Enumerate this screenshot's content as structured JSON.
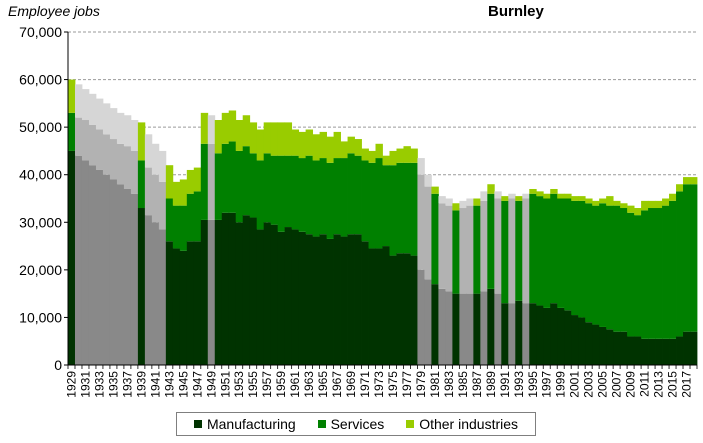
{
  "chart_data": {
    "type": "area",
    "title": "Burnley",
    "ylabel": "Employee jobs",
    "xlabel": "",
    "ylim": [
      0,
      70000
    ],
    "yticks": [
      0,
      10000,
      20000,
      30000,
      40000,
      50000,
      60000,
      70000
    ],
    "ytick_labels": [
      "0",
      "10,000",
      "20,000",
      "30,000",
      "40,000",
      "50,000",
      "60,000",
      "70,000"
    ],
    "grid": "horizontal-dashed",
    "legend_placement": "bottom",
    "colors": {
      "Manufacturing": "#003300",
      "Services": "#008000",
      "Other industries": "#99cc00",
      "estimated_manufacturing": "#898989",
      "estimated_services": "#b2b2b2",
      "estimated_other": "#d6d6d6",
      "gridline": "#9a9a9a"
    },
    "x": [
      1929,
      1930,
      1931,
      1932,
      1933,
      1934,
      1935,
      1936,
      1937,
      1938,
      1939,
      1940,
      1941,
      1942,
      1943,
      1944,
      1945,
      1946,
      1947,
      1948,
      1949,
      1950,
      1951,
      1952,
      1953,
      1954,
      1955,
      1956,
      1957,
      1958,
      1959,
      1960,
      1961,
      1962,
      1963,
      1964,
      1965,
      1966,
      1967,
      1968,
      1969,
      1970,
      1971,
      1972,
      1973,
      1974,
      1975,
      1976,
      1977,
      1978,
      1979,
      1980,
      1981,
      1982,
      1983,
      1984,
      1985,
      1986,
      1987,
      1988,
      1989,
      1990,
      1991,
      1992,
      1993,
      1994,
      1995,
      1996,
      1997,
      1998,
      1999,
      2000,
      2001,
      2002,
      2003,
      2004,
      2005,
      2006,
      2007,
      2008,
      2009,
      2010,
      2011,
      2012,
      2013,
      2014,
      2015,
      2016,
      2017,
      2018
    ],
    "x_tick_labels": [
      "1929",
      "1931",
      "1933",
      "1935",
      "1937",
      "1939",
      "1941",
      "1943",
      "1945",
      "1947",
      "1949",
      "1951",
      "1953",
      "1955",
      "1957",
      "1959",
      "1961",
      "1963",
      "1965",
      "1967",
      "1969",
      "1971",
      "1973",
      "1975",
      "1977",
      "1979",
      "1981",
      "1983",
      "1985",
      "1987",
      "1989",
      "1991",
      "1993",
      "1995",
      "1997",
      "1999",
      "2001",
      "2003",
      "2005",
      "2007",
      "2009",
      "2011",
      "2013",
      "2015",
      "2017"
    ],
    "estimated": [
      0,
      1,
      1,
      1,
      1,
      1,
      1,
      1,
      1,
      1,
      0,
      1,
      1,
      1,
      0,
      0,
      0,
      0,
      0,
      0,
      1,
      0,
      0,
      0,
      0,
      0,
      0,
      0,
      0,
      0,
      0,
      0,
      0,
      0,
      0,
      0,
      0,
      0,
      0,
      0,
      0,
      0,
      0,
      0,
      0,
      0,
      0,
      0,
      0,
      0,
      1,
      1,
      0,
      1,
      1,
      0,
      1,
      1,
      0,
      1,
      0,
      1,
      0,
      1,
      0,
      1,
      0,
      0,
      0,
      0,
      0,
      0,
      0,
      0,
      0,
      0,
      0,
      0,
      0,
      0,
      0,
      0,
      0,
      0,
      0,
      0,
      0,
      0,
      0,
      0
    ],
    "series": [
      {
        "name": "Manufacturing",
        "values": [
          45000,
          44000,
          43000,
          42000,
          41000,
          40000,
          39000,
          38000,
          37000,
          36000,
          33000,
          31500,
          30000,
          28500,
          26000,
          24500,
          24000,
          26000,
          26000,
          30500,
          30500,
          30500,
          32000,
          32000,
          30000,
          31500,
          31000,
          28500,
          30000,
          29500,
          28000,
          29000,
          28500,
          28000,
          27500,
          27000,
          27500,
          26500,
          27500,
          27000,
          27500,
          27500,
          26000,
          24500,
          24500,
          25000,
          23000,
          23500,
          23500,
          23000,
          20000,
          18000,
          17000,
          16000,
          15500,
          15000,
          15000,
          15000,
          15000,
          15500,
          16000,
          15000,
          13000,
          13000,
          13500,
          13000,
          13000,
          12500,
          12000,
          13000,
          12000,
          11500,
          10500,
          10000,
          9000,
          8500,
          8000,
          7500,
          7000,
          7000,
          6000,
          6000,
          5500,
          5500,
          5500,
          5500,
          5500,
          6000,
          7000,
          7000
        ]
      },
      {
        "name": "Services",
        "values": [
          8000,
          8000,
          8500,
          8500,
          8500,
          8500,
          8500,
          8500,
          9000,
          9000,
          10000,
          10000,
          10000,
          10000,
          9000,
          9000,
          9500,
          10000,
          10500,
          16000,
          16000,
          14000,
          14500,
          15000,
          15000,
          14500,
          13500,
          14500,
          14500,
          14500,
          16000,
          15000,
          15500,
          15500,
          16500,
          16000,
          16000,
          16000,
          16000,
          16500,
          17000,
          16500,
          17000,
          18000,
          19000,
          17000,
          19000,
          19000,
          19000,
          19500,
          20000,
          19500,
          19000,
          18000,
          18000,
          17500,
          18000,
          18500,
          18500,
          19000,
          20000,
          20000,
          21500,
          22000,
          21000,
          22000,
          23000,
          23000,
          23000,
          23000,
          23000,
          23500,
          24000,
          24500,
          25000,
          25000,
          26000,
          26000,
          26500,
          26000,
          26000,
          25500,
          27000,
          27500,
          27500,
          28000,
          29000,
          30500,
          31000,
          31000
        ]
      },
      {
        "name": "Other industries",
        "values": [
          7000,
          7000,
          6500,
          6500,
          6500,
          6500,
          6500,
          6500,
          6500,
          6500,
          8000,
          7000,
          6500,
          6500,
          7000,
          5000,
          5500,
          5000,
          5000,
          6500,
          6000,
          7000,
          6500,
          6500,
          6500,
          6500,
          6500,
          6500,
          6500,
          7000,
          7000,
          7000,
          5500,
          5500,
          5500,
          5500,
          5500,
          5500,
          5500,
          3500,
          3500,
          3500,
          2500,
          2500,
          3000,
          2000,
          3000,
          3000,
          3500,
          3000,
          3500,
          2500,
          1500,
          1500,
          1500,
          1500,
          1500,
          1500,
          1500,
          2000,
          2000,
          1500,
          1000,
          1000,
          1000,
          1000,
          1000,
          1000,
          1000,
          1000,
          1000,
          1000,
          1000,
          1000,
          1000,
          1000,
          1000,
          2000,
          1000,
          1000,
          1500,
          1500,
          2000,
          1500,
          1500,
          1500,
          1500,
          1500,
          1500,
          1500
        ]
      }
    ]
  }
}
